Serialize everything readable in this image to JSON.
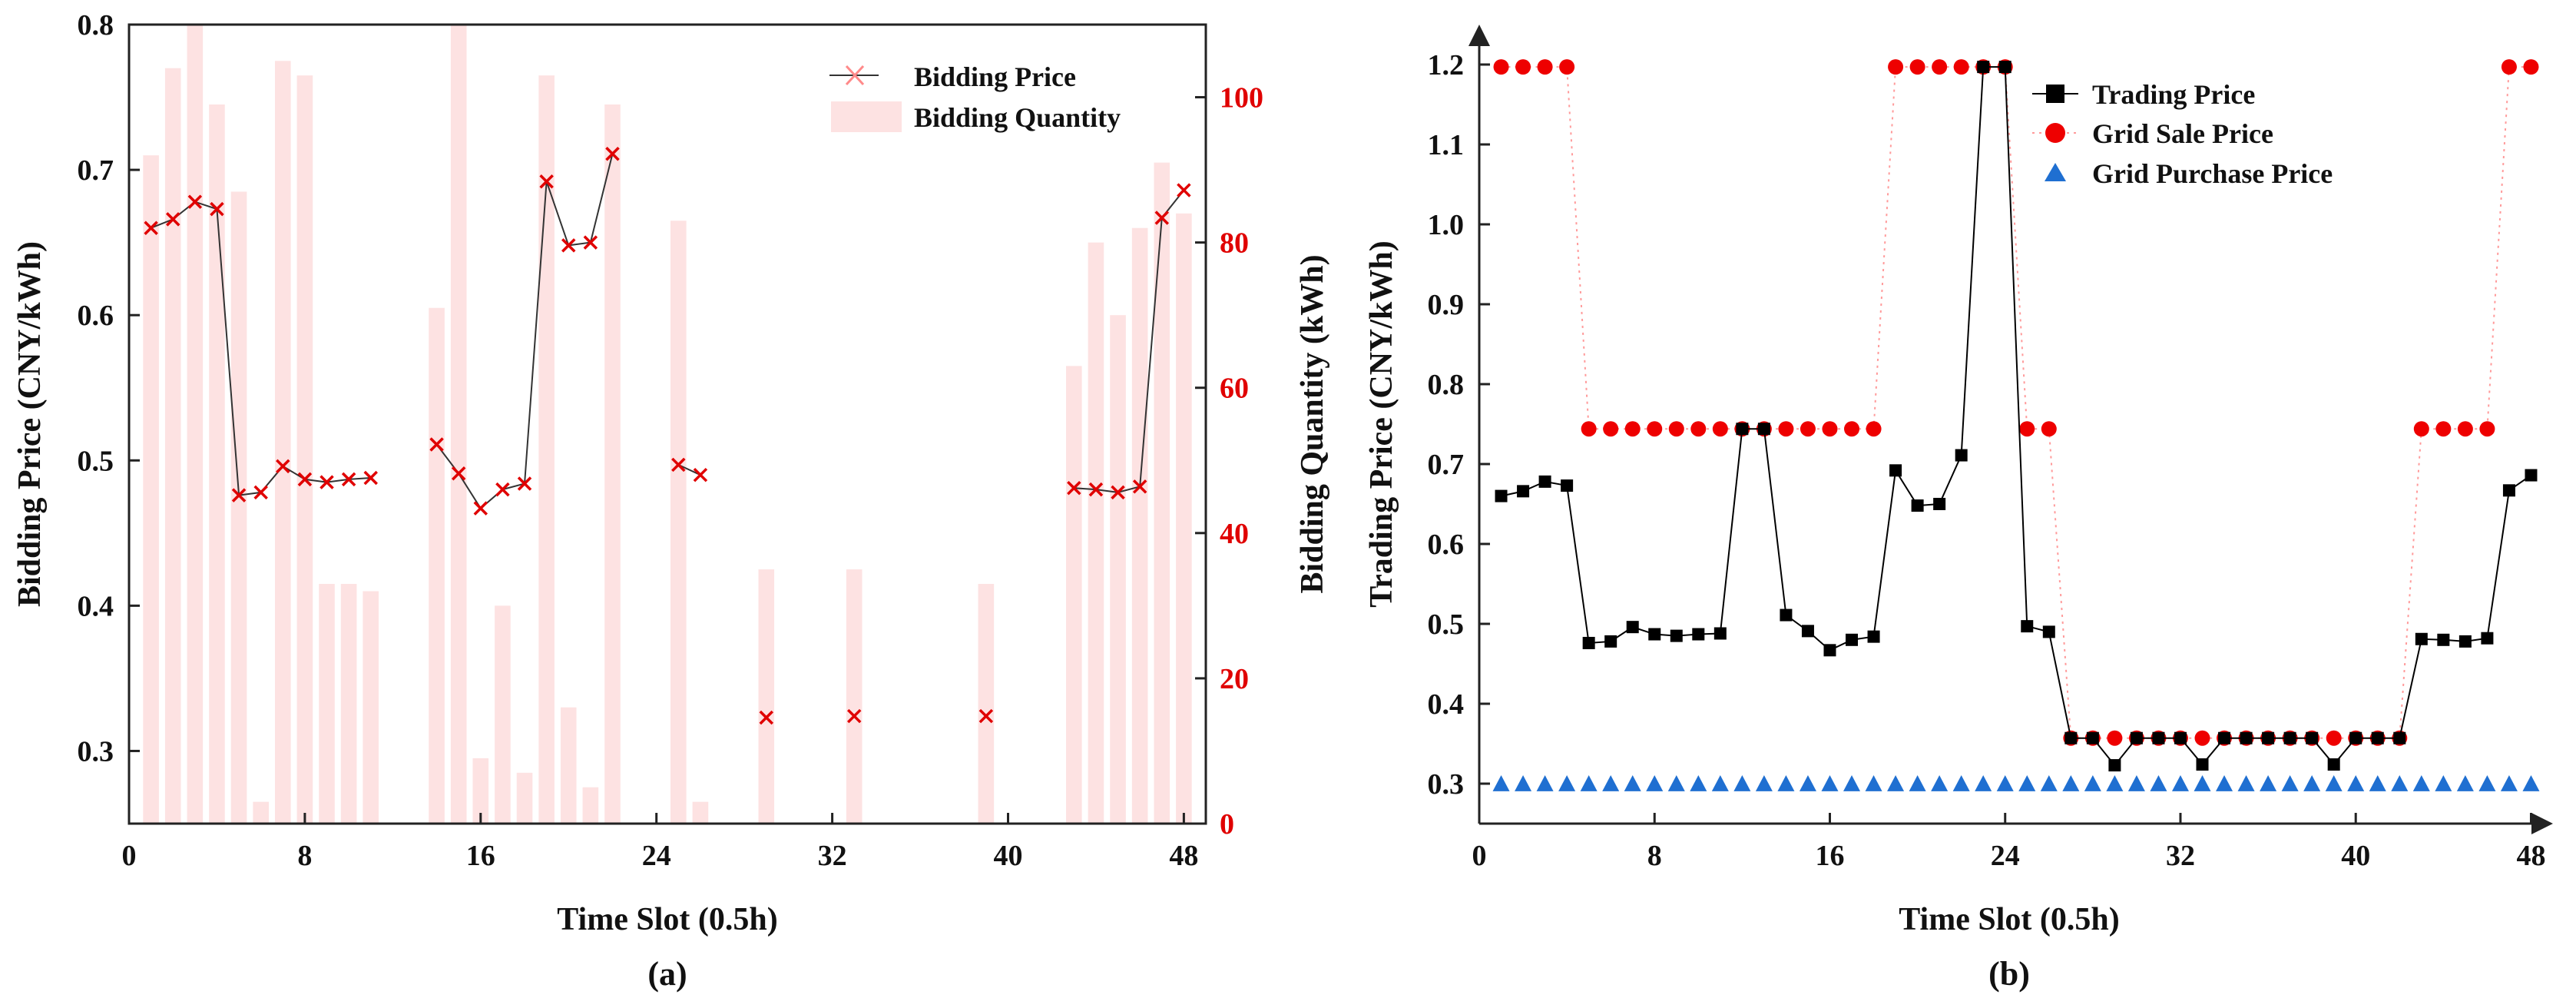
{
  "chart_data": [
    {
      "id": "a",
      "type": "bar+line",
      "caption": "(a)",
      "xlabel": "Time Slot (0.5h)",
      "ylabel_left": "Bidding Price (CNY/kWh)",
      "ylabel_right": "Bidding Quantity (kWh)",
      "xlim": [
        0,
        49
      ],
      "ylim_left": [
        0.25,
        0.8
      ],
      "ylim_right": [
        0,
        110
      ],
      "xticks": [
        "0",
        "8",
        "16",
        "24",
        "32",
        "40",
        "48"
      ],
      "yticks_left": [
        "0.3",
        "0.4",
        "0.5",
        "0.6",
        "0.7",
        "0.8"
      ],
      "yticks_right": [
        "0",
        "20",
        "40",
        "60",
        "80",
        "100"
      ],
      "colors": {
        "bars": "#fde2e2",
        "price_marker": "#e00000",
        "price_line": "#333333",
        "right_axis": "#e00000"
      },
      "legend": {
        "placement": "top-right",
        "line_label": "Bidding Price",
        "bar_label": "Bidding Quantity"
      },
      "bids": [
        {
          "slot": 1,
          "quantity": 92,
          "price": 0.66
        },
        {
          "slot": 2,
          "quantity": 104,
          "price": 0.666
        },
        {
          "slot": 3,
          "quantity": 113,
          "price": 0.678
        },
        {
          "slot": 4,
          "quantity": 99,
          "price": 0.673
        },
        {
          "slot": 5,
          "quantity": 87,
          "price": 0.476
        },
        {
          "slot": 6,
          "quantity": 3,
          "price": 0.478
        },
        {
          "slot": 7,
          "quantity": 105,
          "price": 0.496
        },
        {
          "slot": 8,
          "quantity": 103,
          "price": 0.487
        },
        {
          "slot": 9,
          "quantity": 33,
          "price": 0.485
        },
        {
          "slot": 10,
          "quantity": 33,
          "price": 0.487
        },
        {
          "slot": 11,
          "quantity": 32,
          "price": 0.488
        },
        {
          "slot": 14,
          "quantity": 71,
          "price": 0.511
        },
        {
          "slot": 15,
          "quantity": 114,
          "price": 0.491
        },
        {
          "slot": 16,
          "quantity": 9,
          "price": 0.467
        },
        {
          "slot": 17,
          "quantity": 30,
          "price": 0.48
        },
        {
          "slot": 18,
          "quantity": 7,
          "price": 0.484
        },
        {
          "slot": 19,
          "quantity": 103,
          "price": 0.692
        },
        {
          "slot": 20,
          "quantity": 16,
          "price": 0.648
        },
        {
          "slot": 21,
          "quantity": 5,
          "price": 0.65
        },
        {
          "slot": 22,
          "quantity": 99,
          "price": 0.711
        },
        {
          "slot": 25,
          "quantity": 83,
          "price": 0.497
        },
        {
          "slot": 26,
          "quantity": 3,
          "price": 0.49
        },
        {
          "slot": 29,
          "quantity": 35,
          "price": 0.323
        },
        {
          "slot": 33,
          "quantity": 35,
          "price": 0.324
        },
        {
          "slot": 39,
          "quantity": 33,
          "price": 0.324
        },
        {
          "slot": 43,
          "quantity": 63,
          "price": 0.481
        },
        {
          "slot": 44,
          "quantity": 80,
          "price": 0.48
        },
        {
          "slot": 45,
          "quantity": 70,
          "price": 0.478
        },
        {
          "slot": 46,
          "quantity": 82,
          "price": 0.482
        },
        {
          "slot": 47,
          "quantity": 91,
          "price": 0.667
        },
        {
          "slot": 48,
          "quantity": 84,
          "price": 0.686
        }
      ],
      "price_line_segments": [
        [
          1,
          11
        ],
        [
          14,
          22
        ],
        [
          25,
          26
        ],
        [
          43,
          48
        ]
      ]
    },
    {
      "id": "b",
      "type": "line",
      "caption": "(b)",
      "xlabel": "Time Slot (0.5h)",
      "ylabel": "Trading Price (CNY/kWh)",
      "xlim": [
        0,
        49
      ],
      "ylim": [
        0.25,
        1.25
      ],
      "xticks": [
        "0",
        "8",
        "16",
        "24",
        "32",
        "40",
        "48"
      ],
      "yticks": [
        "0.3",
        "0.4",
        "0.5",
        "0.6",
        "0.7",
        "0.8",
        "0.9",
        "1.0",
        "1.1",
        "1.2"
      ],
      "legend": {
        "placement": "top-right"
      },
      "series": [
        {
          "name": "Trading Price",
          "color": "#000000",
          "marker": "square",
          "values": [
            0.66,
            0.666,
            0.678,
            0.673,
            0.476,
            0.478,
            0.496,
            0.487,
            0.485,
            0.487,
            0.488,
            0.744,
            0.744,
            0.511,
            0.491,
            0.467,
            0.48,
            0.484,
            0.692,
            0.648,
            0.65,
            0.711,
            1.197,
            1.197,
            0.497,
            0.49,
            0.357,
            0.357,
            0.323,
            0.357,
            0.357,
            0.357,
            0.324,
            0.357,
            0.357,
            0.357,
            0.357,
            0.357,
            0.324,
            0.357,
            0.357,
            0.357,
            0.481,
            0.48,
            0.478,
            0.482,
            0.667,
            0.686
          ]
        },
        {
          "name": "Grid Sale Price",
          "color": "#ee0000",
          "marker": "circle",
          "values": [
            1.197,
            1.197,
            1.197,
            1.197,
            0.744,
            0.744,
            0.744,
            0.744,
            0.744,
            0.744,
            0.744,
            0.744,
            0.744,
            0.744,
            0.744,
            0.744,
            0.744,
            0.744,
            1.197,
            1.197,
            1.197,
            1.197,
            1.197,
            1.197,
            0.744,
            0.744,
            0.357,
            0.357,
            0.357,
            0.357,
            0.357,
            0.357,
            0.357,
            0.357,
            0.357,
            0.357,
            0.357,
            0.357,
            0.357,
            0.357,
            0.357,
            0.357,
            0.744,
            0.744,
            0.744,
            0.744,
            1.197,
            1.197
          ]
        },
        {
          "name": "Grid Purchase Price",
          "color": "#1f6fd1",
          "marker": "triangle",
          "values": [
            0.3,
            0.3,
            0.3,
            0.3,
            0.3,
            0.3,
            0.3,
            0.3,
            0.3,
            0.3,
            0.3,
            0.3,
            0.3,
            0.3,
            0.3,
            0.3,
            0.3,
            0.3,
            0.3,
            0.3,
            0.3,
            0.3,
            0.3,
            0.3,
            0.3,
            0.3,
            0.3,
            0.3,
            0.3,
            0.3,
            0.3,
            0.3,
            0.3,
            0.3,
            0.3,
            0.3,
            0.3,
            0.3,
            0.3,
            0.3,
            0.3,
            0.3,
            0.3,
            0.3,
            0.3,
            0.3,
            0.3,
            0.3
          ]
        }
      ]
    }
  ]
}
